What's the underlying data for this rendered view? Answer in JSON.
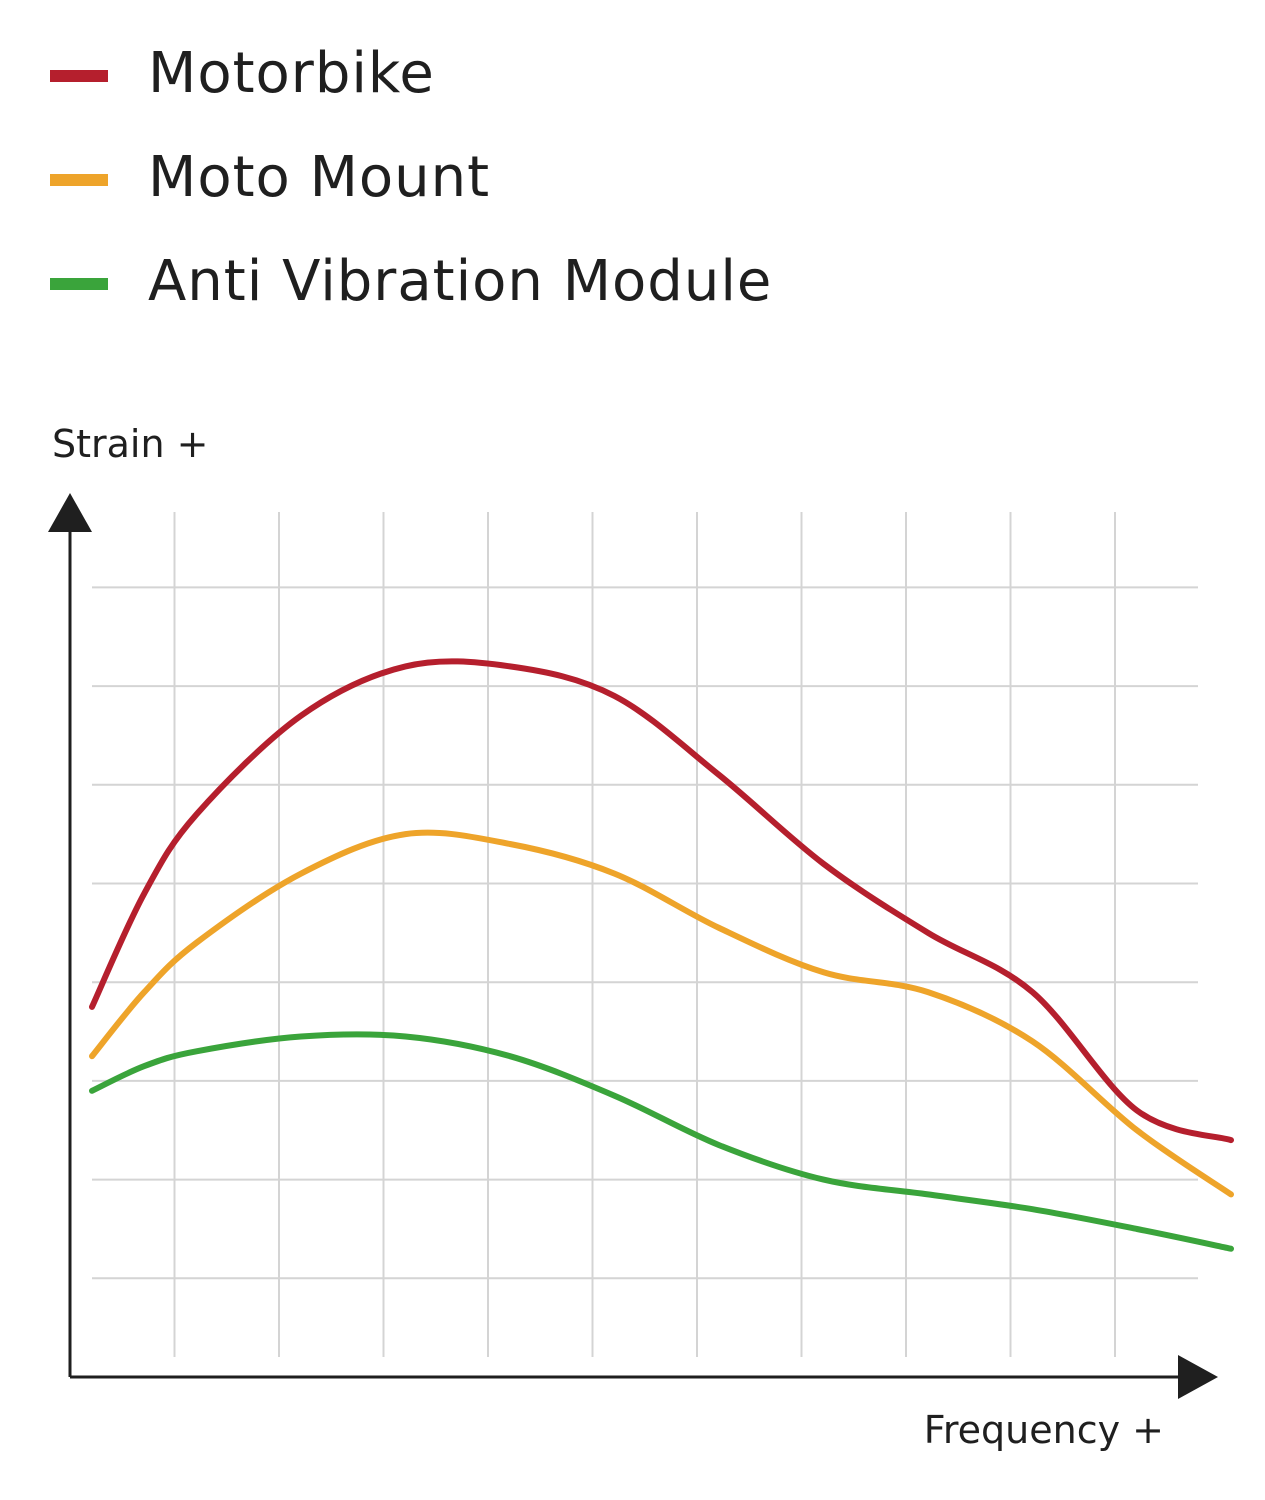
{
  "chart_data": {
    "type": "line",
    "xlabel": "Frequency +",
    "ylabel": "Strain +",
    "grid": true,
    "axis_tick_labels": false,
    "legend_position": "top-left",
    "xlim": [
      0,
      11
    ],
    "ylim": [
      0,
      8
    ],
    "x": [
      0,
      0.5,
      1,
      2,
      3,
      4,
      5,
      6,
      7,
      8,
      9,
      10,
      10.9
    ],
    "series": [
      {
        "name": "Motorbike",
        "color": "#b51f2d",
        "values": [
          3.75,
          4.9,
          5.7,
          6.7,
          7.2,
          7.2,
          6.9,
          6.1,
          5.2,
          4.5,
          3.9,
          2.7,
          2.4
        ]
      },
      {
        "name": "Moto Mount",
        "color": "#eea42a",
        "values": [
          3.25,
          3.9,
          4.4,
          5.1,
          5.5,
          5.4,
          5.1,
          4.55,
          4.1,
          3.9,
          3.4,
          2.5,
          1.85
        ]
      },
      {
        "name": "Anti Vibration Module",
        "color": "#3aa43b",
        "values": [
          2.9,
          3.15,
          3.3,
          3.45,
          3.45,
          3.25,
          2.85,
          2.35,
          2.0,
          1.85,
          1.7,
          1.5,
          1.3
        ]
      }
    ]
  }
}
